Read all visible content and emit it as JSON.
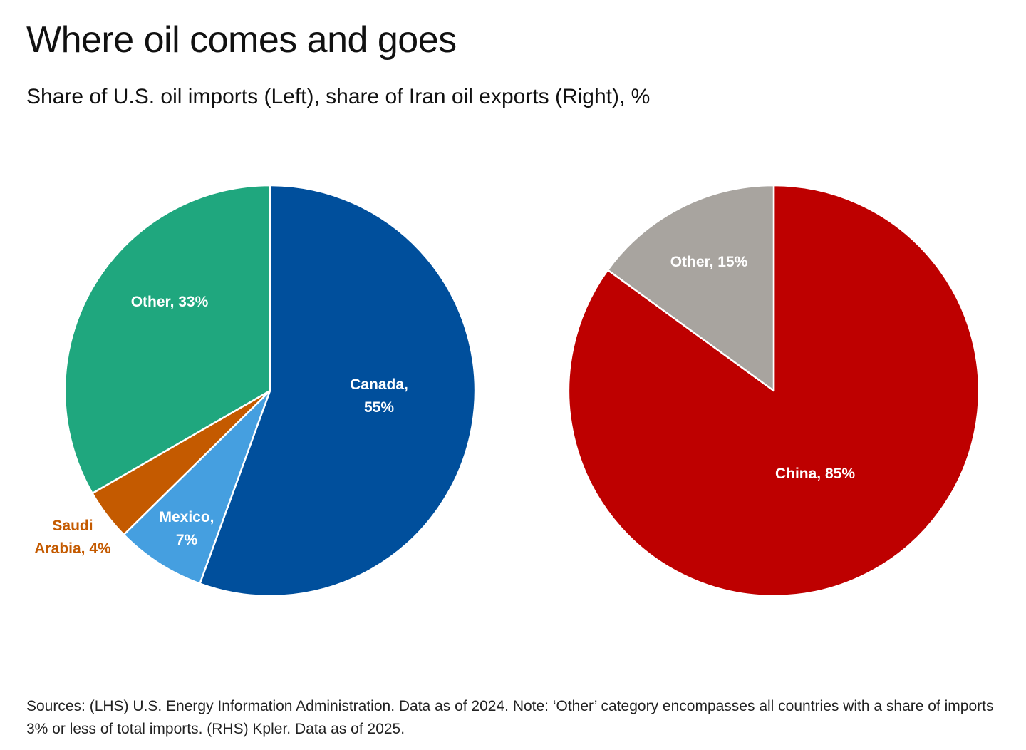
{
  "title": "Where oil comes and goes",
  "subtitle": "Share of U.S. oil imports (Left), share of Iran oil exports (Right), %",
  "footnote": "Sources: (LHS) U.S. Energy Information Administration. Data as of 2024. Note: ‘Other’ category encompasses all countries with a share of imports 3% or less of total imports. (RHS) Kpler. Data as of 2025.",
  "chart_data": [
    {
      "type": "pie",
      "slices": [
        {
          "category": "Canada",
          "value": 55,
          "color": "#004F9C",
          "label_lines": [
            "Canada,",
            "55%"
          ],
          "label_color": "#ffffff"
        },
        {
          "category": "Mexico",
          "value": 7,
          "color": "#459FE0",
          "label_lines": [
            "Mexico,",
            "7%"
          ],
          "label_color": "#ffffff"
        },
        {
          "category": "Saudi Arabia",
          "value": 4,
          "color": "#C45A00",
          "label_lines": [
            "Saudi",
            "Arabia, 4%"
          ],
          "label_color": "#C45A00"
        },
        {
          "category": "Other",
          "value": 33,
          "color": "#1FA77E",
          "label_lines": [
            "Other, 33%"
          ],
          "label_color": "#ffffff"
        }
      ]
    },
    {
      "type": "pie",
      "slices": [
        {
          "category": "China",
          "value": 85,
          "color": "#BE0000",
          "label_lines": [
            "China, 85%"
          ],
          "label_color": "#ffffff"
        },
        {
          "category": "Other",
          "value": 15,
          "color": "#A8A49F",
          "label_lines": [
            "Other, 15%"
          ],
          "label_color": "#ffffff"
        }
      ]
    }
  ]
}
